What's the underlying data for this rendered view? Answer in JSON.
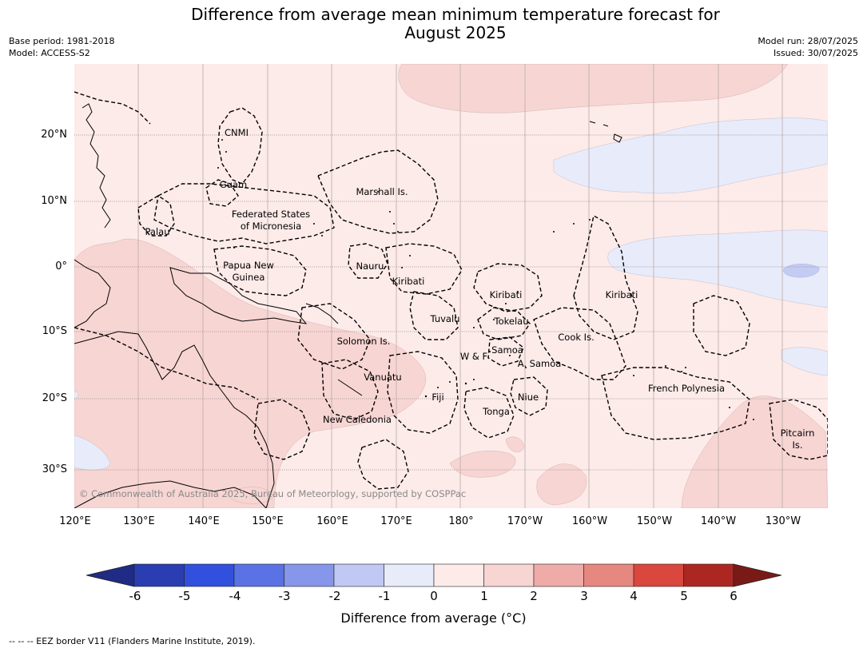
{
  "title": "Difference from average mean minimum temperature forecast for\nAugust 2025",
  "title_line1": "Difference from average mean minimum temperature forecast for",
  "title_line2": "August 2025",
  "header_left": {
    "base_period": "Base period: 1981-2018",
    "model": "Model: ACCESS-S2"
  },
  "header_right": {
    "model_run": "Model run: 28/07/2025",
    "issued": "Issued: 30/07/2025"
  },
  "map": {
    "lat_labels": [
      "20°N",
      "10°N",
      "0°",
      "10°S",
      "20°S",
      "30°S"
    ],
    "lon_labels": [
      "120°E",
      "130°E",
      "140°E",
      "150°E",
      "160°E",
      "170°E",
      "180°",
      "170°W",
      "160°W",
      "150°W",
      "140°W",
      "130°W"
    ],
    "places": {
      "cnmi": "CNMI",
      "guam": "Guam",
      "marshall": "Marshall Is.",
      "fsm_1": "Federated States",
      "fsm_2": "of Micronesia",
      "palau": "Palau",
      "png_1": "Papua New",
      "png_2": "Guinea",
      "nauru": "Nauru",
      "kiribati_w": "Kiribati",
      "kiribati_c": "Kiribati",
      "kiribati_e": "Kiribati",
      "tuvalu": "Tuvalu",
      "tokelau": "Tokelau",
      "solomon": "Solomon Is.",
      "cook": "Cook Is.",
      "samoa": "Samoa",
      "wf": "W & F",
      "asamoa": "A. Samoa",
      "vanuatu": "Vanuatu",
      "fiji": "Fiji",
      "niue": "Niue",
      "french_polynesia": "French Polynesia",
      "tonga": "Tonga",
      "new_caledonia": "New Caledonia",
      "pitcairn_1": "Pitcairn",
      "pitcairn_2": "Is."
    },
    "copyright": "© Commonwealth of Australia 2025, Bureau of Meteorology, supported by COSPPac",
    "background_color": "#fcebe9",
    "warm_color": "#f7d5d3",
    "cool_color": "#e8ebfa",
    "cold_color": "#c4ccf4"
  },
  "colorbar": {
    "ticks": [
      "-6",
      "-5",
      "-4",
      "-3",
      "-2",
      "-1",
      "0",
      "1",
      "2",
      "3",
      "4",
      "5",
      "6"
    ],
    "colors": [
      "#1f2b85",
      "#2a3eb1",
      "#3050dd",
      "#5a72e3",
      "#8696ea",
      "#c0c8f3",
      "#e8ebfa",
      "#fcebe9",
      "#f7d5d3",
      "#eeaba8",
      "#e68880",
      "#d9473e",
      "#ac2721",
      "#7a1a17"
    ],
    "label": "Difference from average (°C)",
    "label_prefix": "Difference from average (",
    "label_unit": "°C",
    "label_suffix": ")"
  },
  "footnote": "--  --  -- EEZ border V11 (Flanders Marine Institute, 2019)."
}
